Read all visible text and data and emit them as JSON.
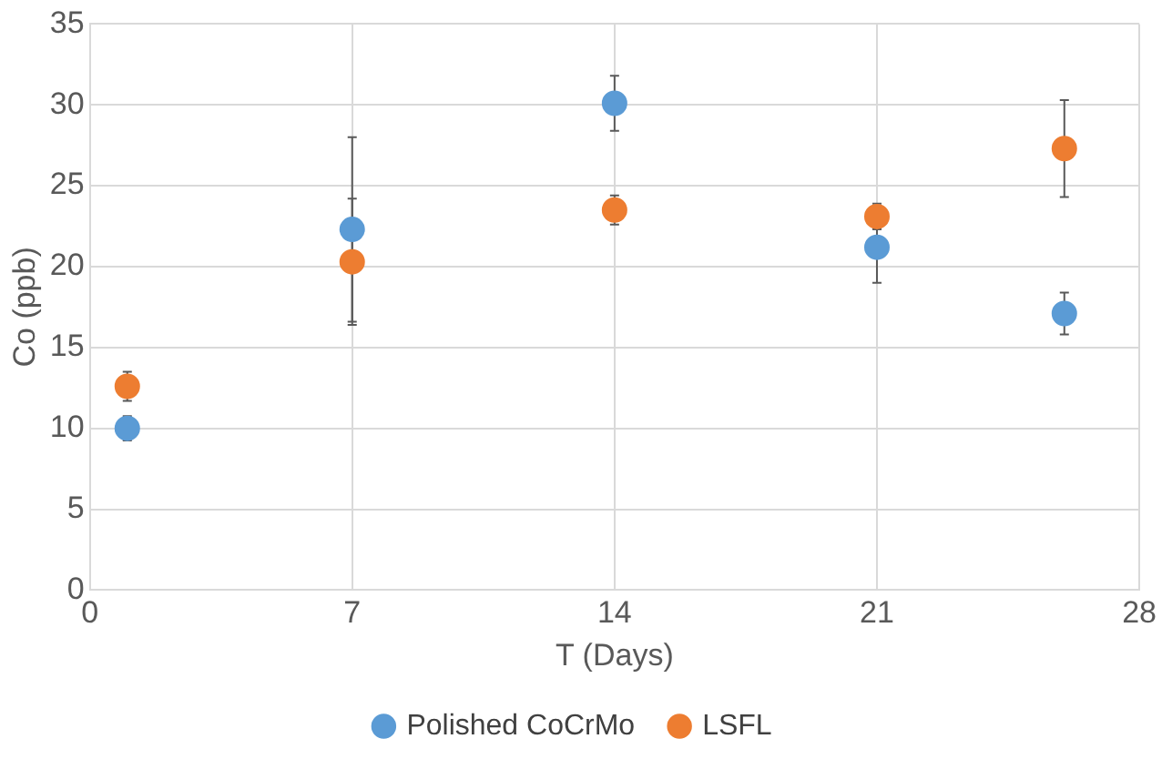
{
  "chart_data": {
    "type": "scatter",
    "xlabel": "T (Days)",
    "ylabel": "Co (ppb)",
    "x": [
      1,
      7,
      14,
      21,
      26
    ],
    "series": [
      {
        "name": "Polished CoCrMo",
        "color": "#5b9bd5",
        "values": [
          10,
          22.3,
          30.1,
          21.2,
          17.1
        ],
        "errors": [
          0.75,
          5.7,
          1.7,
          2.2,
          1.3
        ]
      },
      {
        "name": "LSFL",
        "color": "#ed7d31",
        "values": [
          12.6,
          20.3,
          23.5,
          23.1,
          27.3
        ],
        "errors": [
          0.9,
          3.9,
          0.9,
          0.8,
          3
        ]
      }
    ],
    "xlim": [
      0,
      28
    ],
    "xticks": [
      0,
      7,
      14,
      21,
      28
    ],
    "ylim": [
      0,
      35
    ],
    "yticks": [
      0,
      5,
      10,
      15,
      20,
      25,
      30,
      35
    ],
    "grid": true,
    "legend": "bottom",
    "marker": "circle"
  }
}
